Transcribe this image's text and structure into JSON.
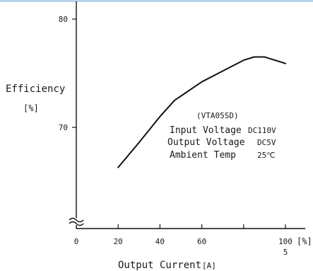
{
  "chart_data": {
    "type": "line",
    "ylabel": "Efficiency",
    "ylabel_unit": "[%]",
    "xlabel": "Output Current",
    "xlabel_unit": "[A]",
    "x_unit_label": "[%]",
    "xlim": [
      0,
      105
    ],
    "ylim": [
      60,
      80
    ],
    "x_ticks": [
      {
        "value": 0,
        "label": "0"
      },
      {
        "value": 20,
        "label": "20"
      },
      {
        "value": 40,
        "label": "40"
      },
      {
        "value": 60,
        "label": "60"
      },
      {
        "value": 80,
        "label": ""
      },
      {
        "value": 100,
        "label": "100"
      }
    ],
    "x_extra_label": {
      "value": 100,
      "label": "5"
    },
    "y_ticks": [
      {
        "value": 70,
        "label": "70"
      },
      {
        "value": 80,
        "label": "80"
      }
    ],
    "axis_break": true,
    "series": [
      {
        "name": "(VTA05SD)",
        "x": [
          20,
          30,
          40,
          47,
          60,
          70,
          80,
          85,
          90,
          100
        ],
        "y": [
          66.3,
          68.6,
          71.0,
          72.5,
          74.2,
          75.2,
          76.2,
          76.5,
          76.5,
          75.9
        ]
      }
    ],
    "annotation": {
      "title": "(VTA05SD)",
      "rows": [
        {
          "label": "Input Voltage",
          "value": "DC110V"
        },
        {
          "label": "Output Voltage",
          "value": "DC5V"
        },
        {
          "label": "Ambient Temp",
          "value": "25℃"
        }
      ]
    }
  }
}
